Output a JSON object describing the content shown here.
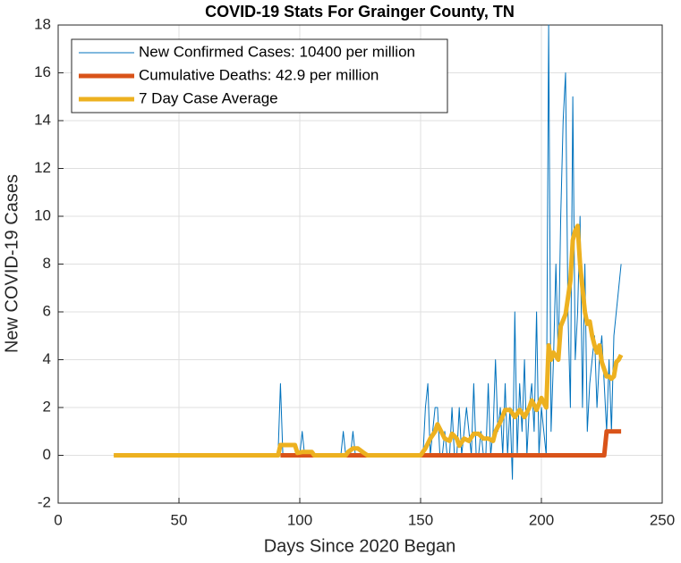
{
  "chart_data": {
    "type": "line",
    "title": "COVID-19 Stats For Grainger County, TN",
    "xlabel": "Days Since 2020 Began",
    "ylabel": "New COVID-19 Cases",
    "xlim": [
      0,
      250
    ],
    "xticks": [
      0,
      50,
      100,
      150,
      200,
      250
    ],
    "ylim": [
      -2,
      18
    ],
    "yticks": [
      -2,
      0,
      2,
      4,
      6,
      8,
      10,
      12,
      14,
      16,
      18
    ],
    "grid": true,
    "legend": "top-left",
    "series": [
      {
        "name": "New Confirmed Cases: 10400 per million",
        "color": "#0072BD",
        "width": 1,
        "x": [
          23,
          91,
          92,
          93,
          100,
          101,
          102,
          117,
          118,
          119,
          121,
          122,
          123,
          150,
          151,
          152,
          153,
          154,
          155,
          156,
          157,
          158,
          159,
          160,
          161,
          162,
          163,
          164,
          165,
          166,
          167,
          168,
          169,
          170,
          171,
          172,
          173,
          174,
          175,
          176,
          177,
          178,
          179,
          180,
          181,
          182,
          183,
          184,
          185,
          186,
          187,
          188,
          189,
          190,
          191,
          192,
          193,
          194,
          195,
          196,
          197,
          198,
          199,
          200,
          201,
          202,
          203,
          204,
          205,
          206,
          207,
          208,
          209,
          210,
          211,
          212,
          213,
          214,
          215,
          216,
          217,
          218,
          219,
          220,
          221,
          222,
          223,
          224,
          225,
          226,
          227,
          228,
          229,
          230,
          231,
          232,
          233
        ],
        "values": [
          0,
          0,
          3,
          0,
          0,
          1,
          0,
          0,
          1,
          0,
          0,
          1,
          0,
          0,
          0,
          2,
          3,
          0,
          1,
          2,
          2,
          0,
          0,
          1,
          0,
          0,
          2,
          0,
          0,
          2,
          0,
          1,
          2,
          1,
          0,
          3,
          0,
          0,
          1,
          0,
          0,
          3,
          0,
          1,
          4,
          1,
          2,
          0,
          3,
          0,
          2,
          -1,
          6,
          0,
          3,
          1,
          4,
          0,
          2,
          3,
          1,
          6,
          0,
          2,
          1,
          0,
          18,
          1,
          4,
          8,
          4,
          10,
          14,
          16,
          6,
          2,
          15,
          4,
          6,
          10,
          2,
          8,
          1,
          3,
          4,
          5,
          2,
          4,
          5,
          3,
          1,
          4,
          1,
          5,
          6,
          7,
          8
        ]
      },
      {
        "name": "Cumulative Deaths: 42.9 per million",
        "color": "#D95319",
        "width": 5,
        "x": [
          92,
          226,
          227,
          233
        ],
        "values": [
          0,
          0,
          1,
          1
        ]
      },
      {
        "name": "7 Day Case Average",
        "color": "#EDB120",
        "width": 5,
        "x": [
          23,
          91,
          92,
          98,
          99,
          101,
          105,
          106,
          119,
          120,
          122,
          124,
          126,
          128,
          150,
          152,
          154,
          156,
          157,
          159,
          160,
          162,
          163,
          165,
          166,
          168,
          170,
          172,
          174,
          176,
          178,
          180,
          181,
          183,
          185,
          187,
          189,
          191,
          193,
          195,
          196,
          198,
          200,
          202,
          203,
          204,
          205,
          207,
          208,
          210,
          212,
          213,
          214,
          215,
          216,
          217,
          218,
          219,
          220,
          221,
          222,
          223,
          224,
          225,
          226,
          227,
          228,
          229,
          230,
          231,
          232,
          233
        ],
        "values": [
          0,
          0,
          0.43,
          0.43,
          0.1,
          0.14,
          0.14,
          0,
          0,
          0.14,
          0.29,
          0.29,
          0.14,
          0,
          0,
          0.29,
          0.7,
          1.0,
          1.3,
          0.9,
          0.7,
          0.6,
          0.9,
          0.7,
          0.4,
          0.7,
          0.6,
          0.9,
          0.9,
          0.7,
          0.7,
          0.6,
          1.0,
          1.4,
          1.9,
          1.9,
          1.6,
          1.9,
          1.6,
          2.0,
          2.3,
          1.9,
          2.4,
          2.0,
          4.6,
          4.0,
          4.3,
          4.0,
          5.4,
          5.9,
          7.3,
          9.0,
          9.4,
          9.6,
          8,
          7,
          6,
          5.5,
          5.6,
          5.0,
          4.6,
          4.3,
          4.6,
          3.9,
          3.6,
          3.3,
          3.3,
          3.2,
          3.3,
          3.9,
          4.0,
          4.2
        ]
      }
    ]
  }
}
